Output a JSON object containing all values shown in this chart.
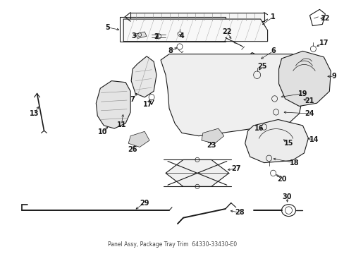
{
  "bg_color": "#ffffff",
  "line_color": "#1a1a1a",
  "fig_width": 4.89,
  "fig_height": 3.6,
  "dpi": 100,
  "caption": "Panel Assy, Package Tray Trim  64330-33430-E0"
}
